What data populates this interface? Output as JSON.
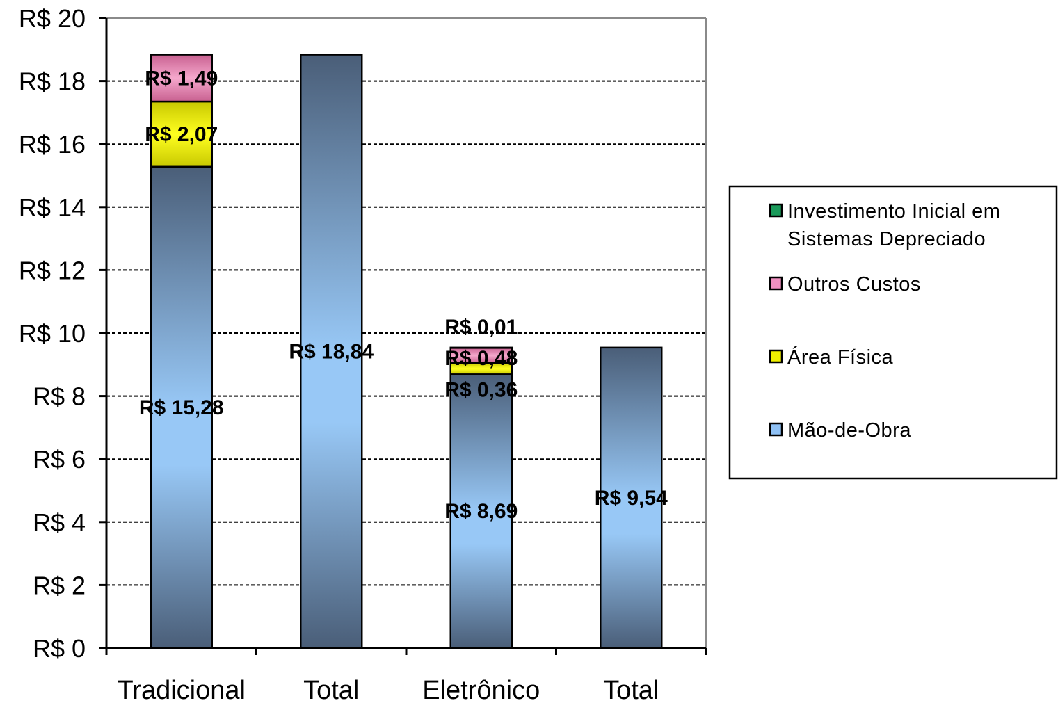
{
  "chart_data": {
    "type": "bar",
    "stacked": true,
    "categories": [
      "Tradicional",
      "Total",
      "Eletrônico",
      "Total"
    ],
    "ylim": [
      0,
      20
    ],
    "yticks": [
      0,
      2,
      4,
      6,
      8,
      10,
      12,
      14,
      16,
      18,
      20
    ],
    "ytick_labels": [
      "R$ 0",
      "R$ 2",
      "R$ 4",
      "R$ 6",
      "R$ 8",
      "R$ 10",
      "R$ 12",
      "R$ 14",
      "R$ 16",
      "R$ 18",
      "R$ 20"
    ],
    "grid": true,
    "legend_position": "right",
    "series": [
      {
        "name": "Mão-de-Obra",
        "color": "#8fc1f5",
        "values": [
          15.28,
          18.84,
          8.69,
          9.54
        ],
        "labels": [
          "R$ 15,28",
          "R$ 18,84",
          "R$ 8,69",
          "R$ 9,54"
        ]
      },
      {
        "name": "Área Física",
        "color": "#f0f000",
        "values": [
          2.07,
          0,
          0.36,
          0
        ],
        "labels": [
          "R$ 2,07",
          "",
          "R$ 0,36",
          ""
        ]
      },
      {
        "name": "Outros Custos",
        "color": "#f090c0",
        "values": [
          1.49,
          0,
          0.48,
          0
        ],
        "labels": [
          "R$ 1,49",
          "",
          "R$ 0,48",
          ""
        ]
      },
      {
        "name": "Investimento Inicial em Sistemas Depreciado",
        "color": "#1a9a5a",
        "values": [
          0,
          0,
          0.01,
          0
        ],
        "labels": [
          "",
          "",
          "R$ 0,01",
          ""
        ]
      }
    ],
    "legend": [
      {
        "lines": [
          "Investimento Inicial em",
          "Sistemas Depreciado"
        ],
        "color": "#1a9a5a"
      },
      {
        "lines": [
          "Outros Custos"
        ],
        "color": "#f090c0"
      },
      {
        "lines": [
          "Área Física"
        ],
        "color": "#f0f000"
      },
      {
        "lines": [
          "Mão-de-Obra"
        ],
        "color": "#8fc1f5"
      }
    ]
  }
}
